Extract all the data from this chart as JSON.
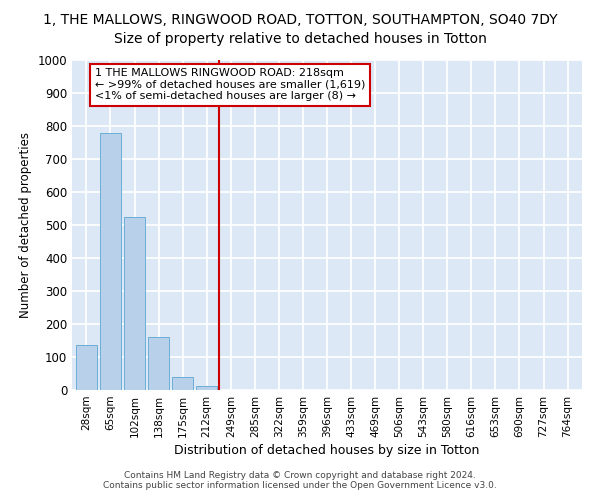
{
  "title1": "1, THE MALLOWS, RINGWOOD ROAD, TOTTON, SOUTHAMPTON, SO40 7DY",
  "title2": "Size of property relative to detached houses in Totton",
  "xlabel": "Distribution of detached houses by size in Totton",
  "ylabel": "Number of detached properties",
  "bar_labels": [
    "28sqm",
    "65sqm",
    "102sqm",
    "138sqm",
    "175sqm",
    "212sqm",
    "249sqm",
    "285sqm",
    "322sqm",
    "359sqm",
    "396sqm",
    "433sqm",
    "469sqm",
    "506sqm",
    "543sqm",
    "580sqm",
    "616sqm",
    "653sqm",
    "690sqm",
    "727sqm",
    "764sqm"
  ],
  "bar_values": [
    135,
    780,
    525,
    160,
    40,
    12,
    0,
    0,
    0,
    0,
    0,
    0,
    0,
    0,
    0,
    0,
    0,
    0,
    0,
    0,
    0
  ],
  "bar_color": "#b8d0ea",
  "bar_edgecolor": "#6baed6",
  "vline_x": 5.5,
  "vline_color": "#cc0000",
  "annotation_text": "1 THE MALLOWS RINGWOOD ROAD: 218sqm\n← >99% of detached houses are smaller (1,619)\n<1% of semi-detached houses are larger (8) →",
  "annotation_box_facecolor": "#ffffff",
  "annotation_box_edgecolor": "#cc0000",
  "ylim": [
    0,
    1000
  ],
  "yticks": [
    0,
    100,
    200,
    300,
    400,
    500,
    600,
    700,
    800,
    900,
    1000
  ],
  "footer_text": "Contains HM Land Registry data © Crown copyright and database right 2024.\nContains public sector information licensed under the Open Government Licence v3.0.",
  "fig_bg_color": "#ffffff",
  "plot_bg_color": "#dce8f5",
  "grid_color": "#ffffff",
  "title1_fontsize": 10,
  "title2_fontsize": 10
}
